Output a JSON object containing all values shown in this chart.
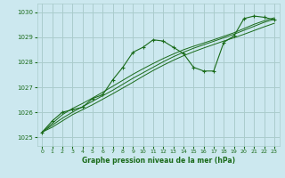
{
  "xlabel": "Graphe pression niveau de la mer (hPa)",
  "background_color": "#cce8ef",
  "grid_color": "#aacccc",
  "line_color": "#1a6b1a",
  "xlim": [
    -0.5,
    23.5
  ],
  "ylim": [
    1024.65,
    1030.35
  ],
  "yticks": [
    1025,
    1026,
    1027,
    1028,
    1029,
    1030
  ],
  "xticks": [
    0,
    1,
    2,
    3,
    4,
    5,
    6,
    7,
    8,
    9,
    10,
    11,
    12,
    13,
    14,
    15,
    16,
    17,
    18,
    19,
    20,
    21,
    22,
    23
  ],
  "y_main": [
    1025.2,
    1025.65,
    1026.0,
    1026.1,
    1026.2,
    1026.55,
    1026.7,
    1027.3,
    1027.8,
    1028.4,
    1028.6,
    1028.9,
    1028.85,
    1028.6,
    1028.35,
    1027.8,
    1027.65,
    1027.65,
    1028.8,
    1029.05,
    1029.75,
    1029.85,
    1029.8,
    1029.7
  ],
  "y_line1": [
    1025.2,
    1025.4,
    1025.65,
    1025.9,
    1026.1,
    1026.3,
    1026.52,
    1026.74,
    1026.97,
    1027.2,
    1027.44,
    1027.67,
    1027.88,
    1028.08,
    1028.26,
    1028.42,
    1028.57,
    1028.71,
    1028.85,
    1028.98,
    1029.12,
    1029.27,
    1029.42,
    1029.56
  ],
  "y_line2": [
    1025.2,
    1025.48,
    1025.76,
    1026.0,
    1026.22,
    1026.44,
    1026.66,
    1026.88,
    1027.12,
    1027.36,
    1027.58,
    1027.8,
    1028.02,
    1028.22,
    1028.4,
    1028.56,
    1028.7,
    1028.84,
    1028.98,
    1029.12,
    1029.28,
    1029.44,
    1029.6,
    1029.72
  ],
  "y_line3": [
    1025.2,
    1025.55,
    1025.9,
    1026.15,
    1026.35,
    1026.57,
    1026.8,
    1027.04,
    1027.28,
    1027.52,
    1027.74,
    1027.95,
    1028.15,
    1028.33,
    1028.5,
    1028.64,
    1028.77,
    1028.9,
    1029.04,
    1029.18,
    1029.35,
    1029.52,
    1029.66,
    1029.78
  ]
}
